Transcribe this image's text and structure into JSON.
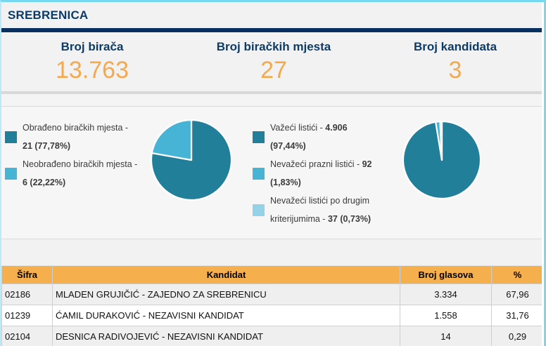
{
  "page": {
    "title": "SREBRENICA"
  },
  "colors": {
    "accent_cyan": "#76d9f2",
    "navy": "#0a3060",
    "title_navy": "#0c3a66",
    "stat_orange": "#f5a94e",
    "table_header_orange": "#f5b04d",
    "pie_teal": "#217f99",
    "pie_blue": "#47b4d6",
    "pie_light_blue": "#93d2e7"
  },
  "stats": [
    {
      "label": "Broj birača",
      "value": "13.763"
    },
    {
      "label": "Broj biračkih mjesta",
      "value": "27"
    },
    {
      "label": "Broj kandidata",
      "value": "3"
    }
  ],
  "chart_data": [
    {
      "type": "pie",
      "name": "biracka-mjesta-obradjenost",
      "legend_position": "left",
      "slices": [
        {
          "label": "Obrađeno biračkih mjesta",
          "value": 21,
          "pct": 77.78,
          "color": "#217f99",
          "legend_lines": [
            [
              [
                "Obrađeno biračkih mjesta -",
                false
              ]
            ],
            [
              [
                "21 (77,78%)",
                true
              ]
            ]
          ]
        },
        {
          "label": "Neobrađeno biračkih mjesta",
          "value": 6,
          "pct": 22.22,
          "color": "#47b4d6",
          "legend_lines": [
            [
              [
                "Neobrađeno biračkih mjesta -",
                false
              ]
            ],
            [
              [
                "6 (22,22%)",
                true
              ]
            ]
          ]
        }
      ]
    },
    {
      "type": "pie",
      "name": "listici-vazenje",
      "legend_position": "left",
      "slices": [
        {
          "label": "Važeći listići",
          "value": 4906,
          "pct": 97.44,
          "color": "#217f99",
          "legend_lines": [
            [
              [
                "Važeći listići - ",
                false
              ],
              [
                "4.906",
                true
              ]
            ],
            [
              [
                "(97,44%)",
                true
              ]
            ]
          ]
        },
        {
          "label": "Nevažeći prazni listići",
          "value": 92,
          "pct": 1.83,
          "color": "#47b4d6",
          "legend_lines": [
            [
              [
                "Nevažeći prazni listići - ",
                false
              ],
              [
                "92",
                true
              ]
            ],
            [
              [
                "(1,83%)",
                true
              ]
            ]
          ]
        },
        {
          "label": "Nevažeći listići po drugim kriterijumima",
          "value": 37,
          "pct": 0.73,
          "color": "#93d2e7",
          "legend_lines": [
            [
              [
                "Nevažeći listići po drugim",
                false
              ]
            ],
            [
              [
                "kriterijumima - ",
                false
              ],
              [
                "37 (0,73%)",
                true
              ]
            ]
          ]
        }
      ]
    }
  ],
  "table": {
    "headers": [
      "Šifra",
      "Kandidat",
      "Broj glasova",
      "%"
    ],
    "rows": [
      {
        "code": "02186",
        "candidate": "MLADEN GRUJIČIĆ - ZAJEDNO ZA SREBRENICU",
        "votes": "3.334",
        "pct": "67,96"
      },
      {
        "code": "01239",
        "candidate": "ĆAMIL DURAKOVIĆ - NEZAVISNI KANDIDAT",
        "votes": "1.558",
        "pct": "31,76"
      },
      {
        "code": "02104",
        "candidate": "DESNICA RADIVOJEVIĆ - NEZAVISNI KANDIDAT",
        "votes": "14",
        "pct": "0,29"
      }
    ]
  }
}
